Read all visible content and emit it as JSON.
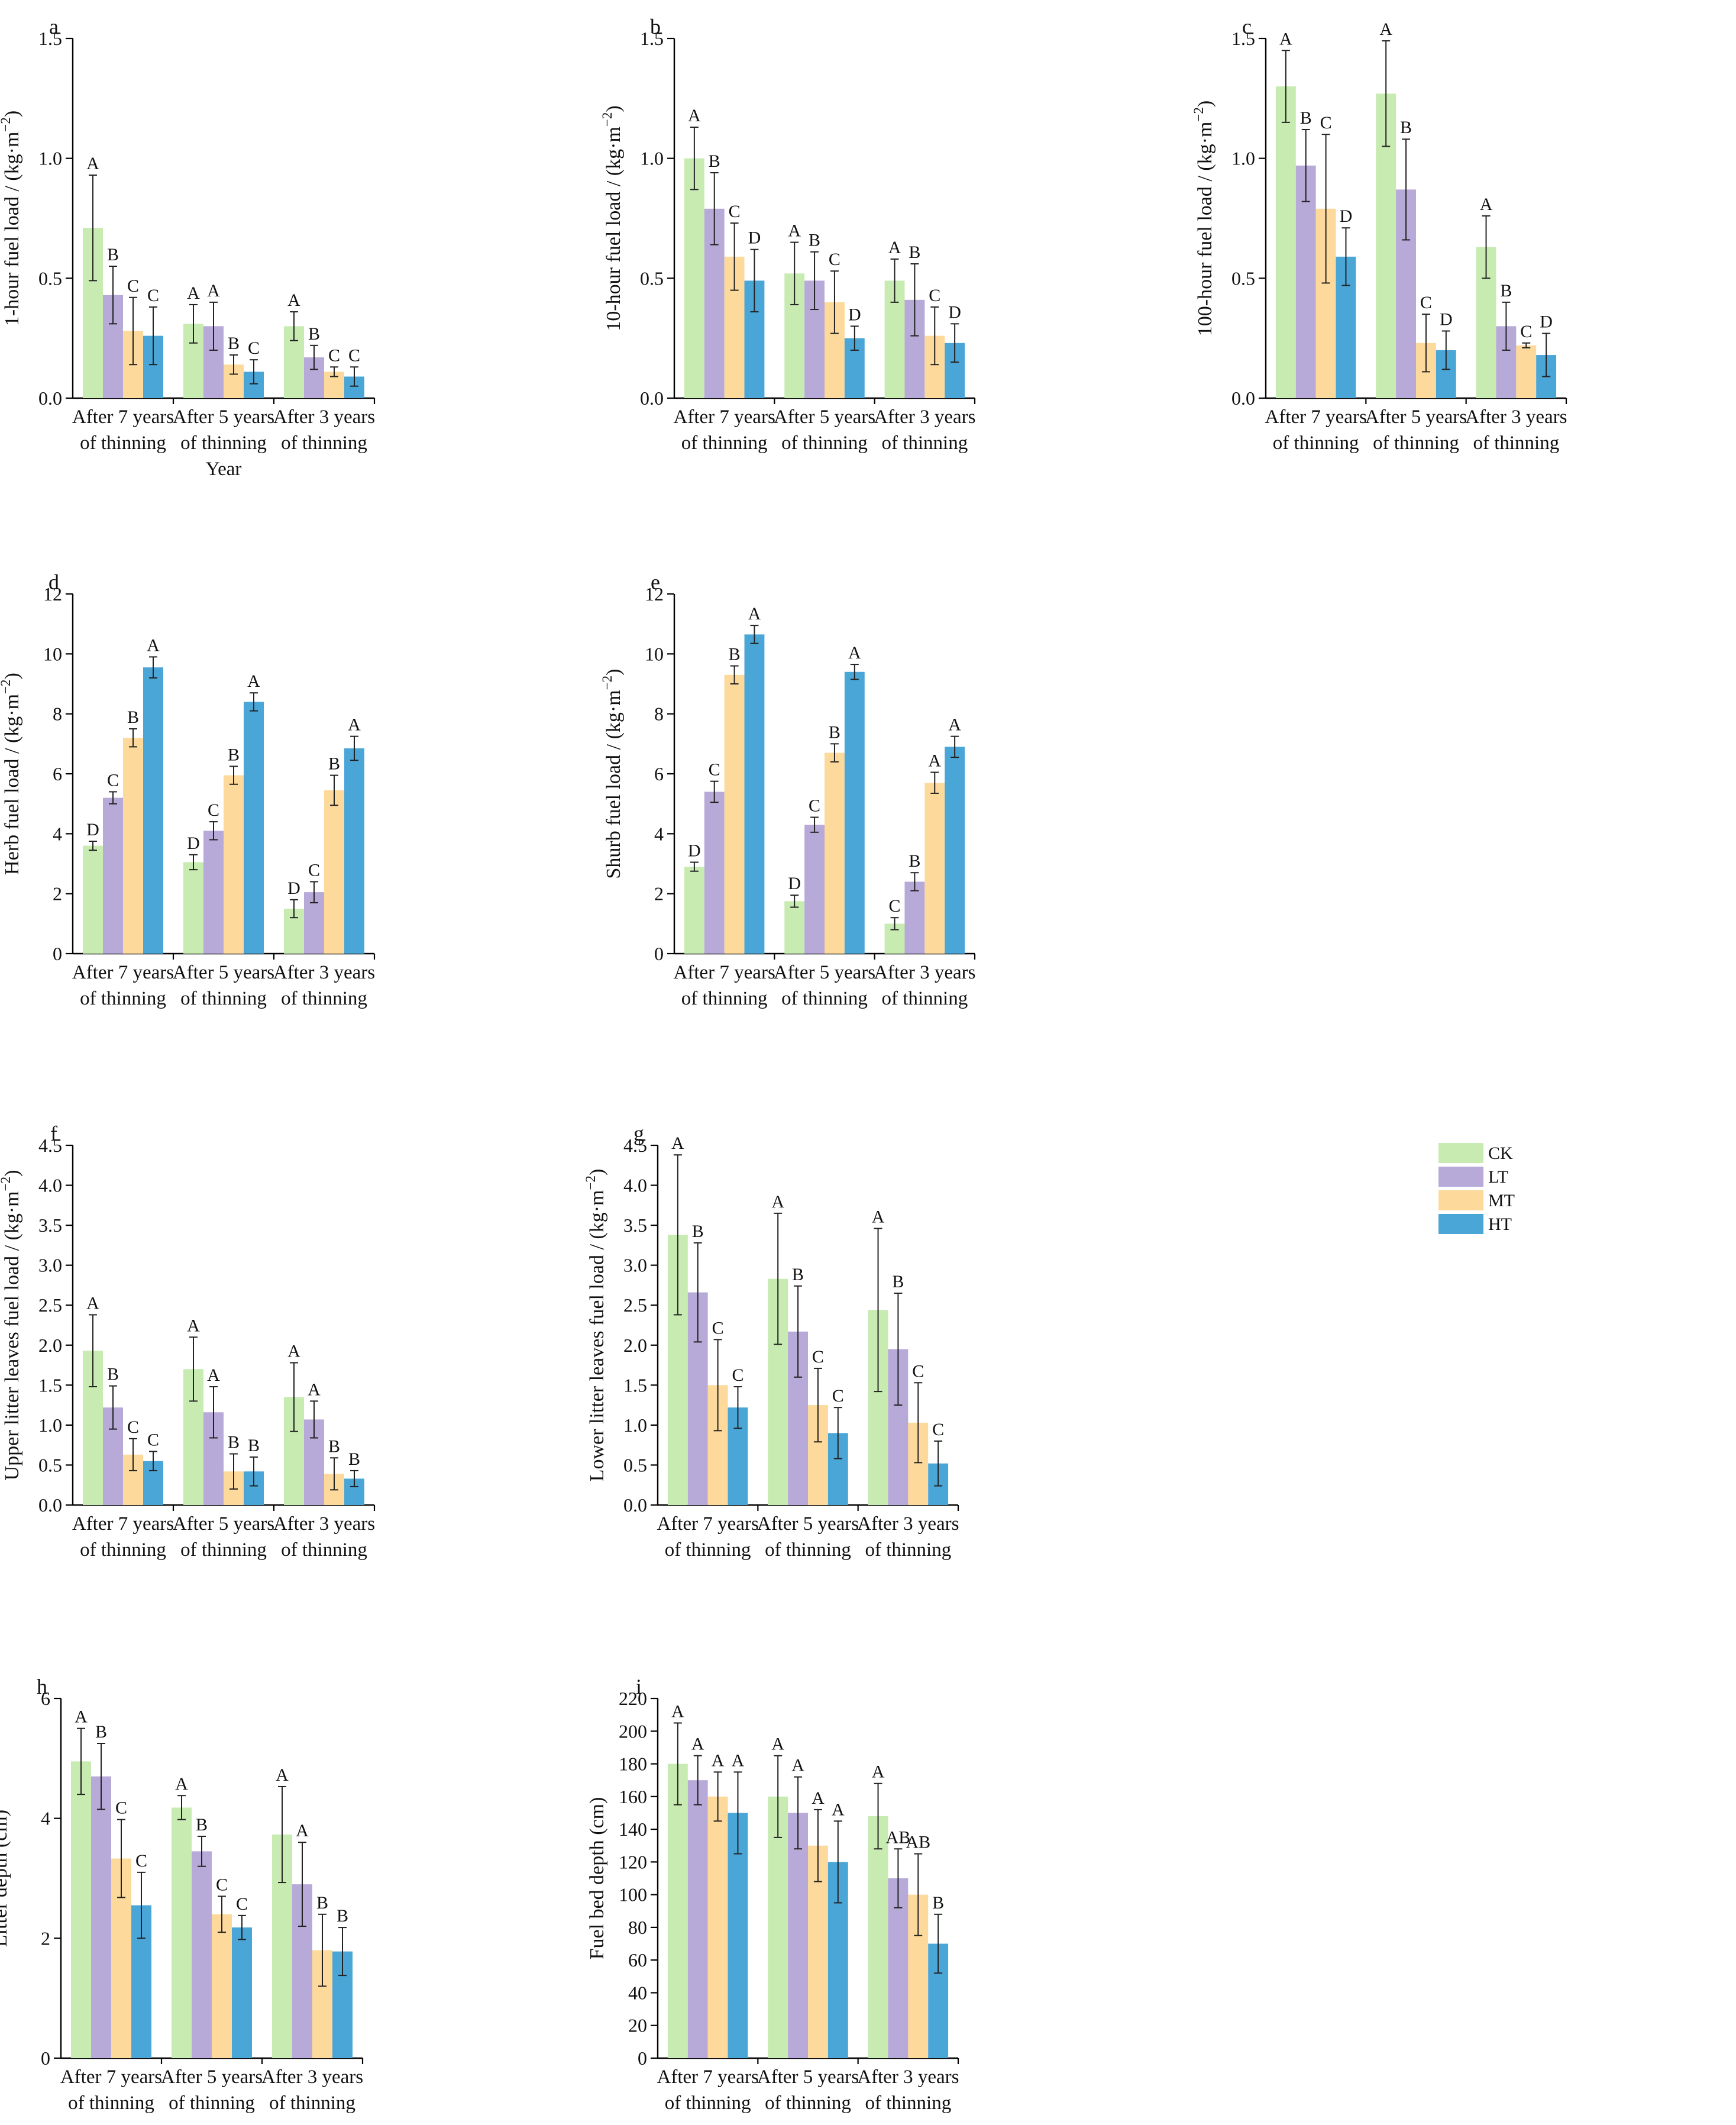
{
  "figure": {
    "legend": {
      "placement": "right-middle",
      "entries": [
        {
          "label": "CK",
          "color": "#c7ebb1"
        },
        {
          "label": "LT",
          "color": "#b7aad9"
        },
        {
          "label": "MT",
          "color": "#fdd99b"
        },
        {
          "label": "HT",
          "color": "#4ba6d8"
        }
      ]
    }
  },
  "chart_data": [
    {
      "panel": "a",
      "type": "bar",
      "xlabel": "Year",
      "ylabel": "1-hour fuel load / (kg·m−2)",
      "ylabel_main": "1-hour fuel load / (kg·m",
      "ylabel_sup": "−2",
      "ylabel_tail": ")",
      "ylim": [
        0,
        1.5
      ],
      "yticks": [
        "0.0",
        "0.5",
        "1.0",
        "1.5"
      ],
      "categories": [
        [
          "After 7 years",
          "of thinning"
        ],
        [
          "After 5 years",
          "of thinning"
        ],
        [
          "After 3 years",
          "of thinning"
        ]
      ],
      "series": [
        {
          "name": "CK",
          "values": [
            0.71,
            0.31,
            0.3
          ],
          "errors": [
            0.22,
            0.08,
            0.06
          ],
          "letters": [
            "A",
            "A",
            "A"
          ]
        },
        {
          "name": "LT",
          "values": [
            0.43,
            0.3,
            0.17
          ],
          "errors": [
            0.12,
            0.1,
            0.05
          ],
          "letters": [
            "B",
            "A",
            "B"
          ]
        },
        {
          "name": "MT",
          "values": [
            0.28,
            0.14,
            0.11
          ],
          "errors": [
            0.14,
            0.04,
            0.02
          ],
          "letters": [
            "C",
            "B",
            "C"
          ]
        },
        {
          "name": "HT",
          "values": [
            0.26,
            0.11,
            0.09
          ],
          "errors": [
            0.12,
            0.05,
            0.04
          ],
          "letters": [
            "C",
            "C",
            "C"
          ]
        }
      ]
    },
    {
      "panel": "b",
      "type": "bar",
      "xlabel": "",
      "ylabel": "10-hour fuel load / (kg·m−2)",
      "ylabel_main": "10-hour fuel load / (kg·m",
      "ylabel_sup": "−2",
      "ylabel_tail": ")",
      "ylim": [
        0,
        1.5
      ],
      "yticks": [
        "0.0",
        "0.5",
        "1.0",
        "1.5"
      ],
      "categories": [
        [
          "After 7 years",
          "of thinning"
        ],
        [
          "After 5 years",
          "of thinning"
        ],
        [
          "After 3 years",
          "of thinning"
        ]
      ],
      "series": [
        {
          "name": "CK",
          "values": [
            1.0,
            0.52,
            0.49
          ],
          "errors": [
            0.13,
            0.13,
            0.09
          ],
          "letters": [
            "A",
            "A",
            "A"
          ]
        },
        {
          "name": "LT",
          "values": [
            0.79,
            0.49,
            0.41
          ],
          "errors": [
            0.15,
            0.12,
            0.15
          ],
          "letters": [
            "B",
            "B",
            "B"
          ]
        },
        {
          "name": "MT",
          "values": [
            0.59,
            0.4,
            0.26
          ],
          "errors": [
            0.14,
            0.13,
            0.12
          ],
          "letters": [
            "C",
            "C",
            "C"
          ]
        },
        {
          "name": "HT",
          "values": [
            0.49,
            0.25,
            0.23
          ],
          "errors": [
            0.13,
            0.05,
            0.08
          ],
          "letters": [
            "D",
            "D",
            "D"
          ]
        }
      ]
    },
    {
      "panel": "c",
      "type": "bar",
      "xlabel": "",
      "ylabel": "100-hour fuel load / (kg·m−2)",
      "ylabel_main": "100-hour fuel load / (kg·m",
      "ylabel_sup": "−2",
      "ylabel_tail": ")",
      "ylim": [
        0,
        1.5
      ],
      "yticks": [
        "0.0",
        "0.5",
        "1.0",
        "1.5"
      ],
      "categories": [
        [
          "After 7 years",
          "of thinning"
        ],
        [
          "After 5 years",
          "of thinning"
        ],
        [
          "After 3 years",
          "of thinning"
        ]
      ],
      "series": [
        {
          "name": "CK",
          "values": [
            1.3,
            1.27,
            0.63
          ],
          "errors": [
            0.15,
            0.22,
            0.13
          ],
          "letters": [
            "A",
            "A",
            "A"
          ]
        },
        {
          "name": "LT",
          "values": [
            0.97,
            0.87,
            0.3
          ],
          "errors": [
            0.15,
            0.21,
            0.1
          ],
          "letters": [
            "B",
            "B",
            "B"
          ]
        },
        {
          "name": "MT",
          "values": [
            0.79,
            0.23,
            0.22
          ],
          "errors": [
            0.31,
            0.12,
            0.01
          ],
          "letters": [
            "C",
            "C",
            "C"
          ]
        },
        {
          "name": "HT",
          "values": [
            0.59,
            0.2,
            0.18
          ],
          "errors": [
            0.12,
            0.08,
            0.09
          ],
          "letters": [
            "D",
            "D",
            "D"
          ]
        }
      ]
    },
    {
      "panel": "d",
      "type": "bar",
      "xlabel": "",
      "ylabel": "Herb fuel load / (kg·m−2)",
      "ylabel_main": "Herb fuel load / (kg·m",
      "ylabel_sup": "−2",
      "ylabel_tail": ")",
      "ylim": [
        0,
        12
      ],
      "yticks": [
        "0",
        "2",
        "4",
        "6",
        "8",
        "10",
        "12"
      ],
      "categories": [
        [
          "After 7 years",
          "of thinning"
        ],
        [
          "After 5 years",
          "of thinning"
        ],
        [
          "After 3 years",
          "of thinning"
        ]
      ],
      "series": [
        {
          "name": "CK",
          "values": [
            3.6,
            3.05,
            1.5
          ],
          "errors": [
            0.15,
            0.25,
            0.3
          ],
          "letters": [
            "D",
            "D",
            "D"
          ]
        },
        {
          "name": "LT",
          "values": [
            5.2,
            4.1,
            2.05
          ],
          "errors": [
            0.2,
            0.3,
            0.35
          ],
          "letters": [
            "C",
            "C",
            "C"
          ]
        },
        {
          "name": "MT",
          "values": [
            7.2,
            5.95,
            5.45
          ],
          "errors": [
            0.3,
            0.3,
            0.5
          ],
          "letters": [
            "B",
            "B",
            "B"
          ]
        },
        {
          "name": "HT",
          "values": [
            9.55,
            8.4,
            6.85
          ],
          "errors": [
            0.35,
            0.3,
            0.4
          ],
          "letters": [
            "A",
            "A",
            "A"
          ]
        }
      ]
    },
    {
      "panel": "e",
      "type": "bar",
      "xlabel": "",
      "ylabel": "Shurb fuel load / (kg·m−2)",
      "ylabel_main": "Shurb fuel load / (kg·m",
      "ylabel_sup": "−2",
      "ylabel_tail": ")",
      "ylim": [
        0,
        12
      ],
      "yticks": [
        "0",
        "2",
        "4",
        "6",
        "8",
        "10",
        "12"
      ],
      "categories": [
        [
          "After 7 years",
          "of thinning"
        ],
        [
          "After 5 years",
          "of thinning"
        ],
        [
          "After 3 years",
          "of thinning"
        ]
      ],
      "series": [
        {
          "name": "CK",
          "values": [
            2.9,
            1.75,
            1.0
          ],
          "errors": [
            0.15,
            0.2,
            0.2
          ],
          "letters": [
            "D",
            "D",
            "C"
          ]
        },
        {
          "name": "LT",
          "values": [
            5.4,
            4.3,
            2.4
          ],
          "errors": [
            0.35,
            0.25,
            0.3
          ],
          "letters": [
            "C",
            "C",
            "B"
          ]
        },
        {
          "name": "MT",
          "values": [
            9.3,
            6.7,
            5.7
          ],
          "errors": [
            0.3,
            0.3,
            0.35
          ],
          "letters": [
            "B",
            "B",
            "A"
          ]
        },
        {
          "name": "HT",
          "values": [
            10.65,
            9.4,
            6.9
          ],
          "errors": [
            0.3,
            0.25,
            0.35
          ],
          "letters": [
            "A",
            "A",
            "A"
          ]
        }
      ]
    },
    {
      "panel": "f",
      "type": "bar",
      "xlabel": "",
      "ylabel": "Upper litter leaves fuel load / (kg·m−2)",
      "ylabel_main": "Upper litter leaves fuel load  / (kg·m",
      "ylabel_sup": "−2",
      "ylabel_tail": ")",
      "ylim": [
        0,
        4.5
      ],
      "yticks": [
        "0.0",
        "0.5",
        "1.0",
        "1.5",
        "2.0",
        "2.5",
        "3.0",
        "3.5",
        "4.0",
        "4.5"
      ],
      "categories": [
        [
          "After 7 years",
          "of thinning"
        ],
        [
          "After 5 years",
          "of thinning"
        ],
        [
          "After 3 years",
          "of thinning"
        ]
      ],
      "series": [
        {
          "name": "CK",
          "values": [
            1.93,
            1.7,
            1.35
          ],
          "errors": [
            0.45,
            0.4,
            0.43
          ],
          "letters": [
            "A",
            "A",
            "A"
          ]
        },
        {
          "name": "LT",
          "values": [
            1.22,
            1.16,
            1.07
          ],
          "errors": [
            0.27,
            0.32,
            0.23
          ],
          "letters": [
            "B",
            "A",
            "A"
          ]
        },
        {
          "name": "MT",
          "values": [
            0.63,
            0.42,
            0.39
          ],
          "errors": [
            0.2,
            0.22,
            0.2
          ],
          "letters": [
            "C",
            "B",
            "B"
          ]
        },
        {
          "name": "HT",
          "values": [
            0.55,
            0.42,
            0.33
          ],
          "errors": [
            0.12,
            0.18,
            0.1
          ],
          "letters": [
            "C",
            "B",
            "B"
          ]
        }
      ]
    },
    {
      "panel": "g",
      "type": "bar",
      "xlabel": "",
      "ylabel": "Lower litter leaves fuel load / (kg·m−2)",
      "ylabel_main": "Lower litter leaves fuel load  / (kg·m",
      "ylabel_sup": "−2",
      "ylabel_tail": ")",
      "ylim": [
        0,
        4.5
      ],
      "yticks": [
        "0.0",
        "0.5",
        "1.0",
        "1.5",
        "2.0",
        "2.5",
        "3.0",
        "3.5",
        "4.0",
        "4.5"
      ],
      "categories": [
        [
          "After 7 years",
          "of thinning"
        ],
        [
          "After 5 years",
          "of thinning"
        ],
        [
          "After 3 years",
          "of thinning"
        ]
      ],
      "series": [
        {
          "name": "CK",
          "values": [
            3.38,
            2.83,
            2.44
          ],
          "errors": [
            1.0,
            0.82,
            1.02
          ],
          "letters": [
            "A",
            "A",
            "A"
          ]
        },
        {
          "name": "LT",
          "values": [
            2.66,
            2.17,
            1.95
          ],
          "errors": [
            0.62,
            0.57,
            0.7
          ],
          "letters": [
            "B",
            "B",
            "B"
          ]
        },
        {
          "name": "MT",
          "values": [
            1.5,
            1.25,
            1.03
          ],
          "errors": [
            0.57,
            0.46,
            0.5
          ],
          "letters": [
            "C",
            "C",
            "C"
          ]
        },
        {
          "name": "HT",
          "values": [
            1.22,
            0.9,
            0.52
          ],
          "errors": [
            0.26,
            0.32,
            0.28
          ],
          "letters": [
            "C",
            "C",
            "C"
          ]
        }
      ]
    },
    {
      "panel": "h",
      "type": "bar",
      "xlabel": "",
      "ylabel": "Litter depth (cm)",
      "ylabel_main": "Litter depth (cm)",
      "ylabel_sup": "",
      "ylabel_tail": "",
      "ylim": [
        0,
        6
      ],
      "yticks": [
        "0",
        "2",
        "4",
        "6"
      ],
      "categories": [
        [
          "After 7 years",
          "of thinning"
        ],
        [
          "After 5 years",
          "of thinning"
        ],
        [
          "After 3 years",
          "of thinning"
        ]
      ],
      "series": [
        {
          "name": "CK",
          "values": [
            4.95,
            4.18,
            3.73
          ],
          "errors": [
            0.55,
            0.2,
            0.8
          ],
          "letters": [
            "A",
            "A",
            "A"
          ]
        },
        {
          "name": "LT",
          "values": [
            4.7,
            3.45,
            2.9
          ],
          "errors": [
            0.55,
            0.25,
            0.7
          ],
          "letters": [
            "B",
            "B",
            "A"
          ]
        },
        {
          "name": "MT",
          "values": [
            3.33,
            2.4,
            1.8
          ],
          "errors": [
            0.65,
            0.3,
            0.6
          ],
          "letters": [
            "C",
            "C",
            "B"
          ]
        },
        {
          "name": "HT",
          "values": [
            2.55,
            2.18,
            1.78
          ],
          "errors": [
            0.55,
            0.2,
            0.4
          ],
          "letters": [
            "C",
            "C",
            "B"
          ]
        }
      ]
    },
    {
      "panel": "i",
      "type": "bar",
      "xlabel": "",
      "ylabel": "Fuel bed depth (cm)",
      "ylabel_main": "Fuel bed depth (cm)",
      "ylabel_sup": "",
      "ylabel_tail": "",
      "ylim": [
        0,
        220
      ],
      "yticks": [
        "0",
        "20",
        "40",
        "60",
        "80",
        "100",
        "120",
        "140",
        "160",
        "180",
        "200",
        "220"
      ],
      "categories": [
        [
          "After 7 years",
          "of thinning"
        ],
        [
          "After 5 years",
          "of thinning"
        ],
        [
          "After 3 years",
          "of thinning"
        ]
      ],
      "series": [
        {
          "name": "CK",
          "values": [
            180,
            160,
            148
          ],
          "errors": [
            25,
            25,
            20
          ],
          "letters": [
            "A",
            "A",
            "A"
          ]
        },
        {
          "name": "LT",
          "values": [
            170,
            150,
            110
          ],
          "errors": [
            15,
            22,
            18
          ],
          "letters": [
            "A",
            "A",
            "AB"
          ]
        },
        {
          "name": "MT",
          "values": [
            160,
            130,
            100
          ],
          "errors": [
            15,
            22,
            25
          ],
          "letters": [
            "A",
            "A",
            "AB"
          ]
        },
        {
          "name": "HT",
          "values": [
            150,
            120,
            70
          ],
          "errors": [
            25,
            25,
            18
          ],
          "letters": [
            "A",
            "A",
            "B"
          ]
        }
      ]
    }
  ]
}
